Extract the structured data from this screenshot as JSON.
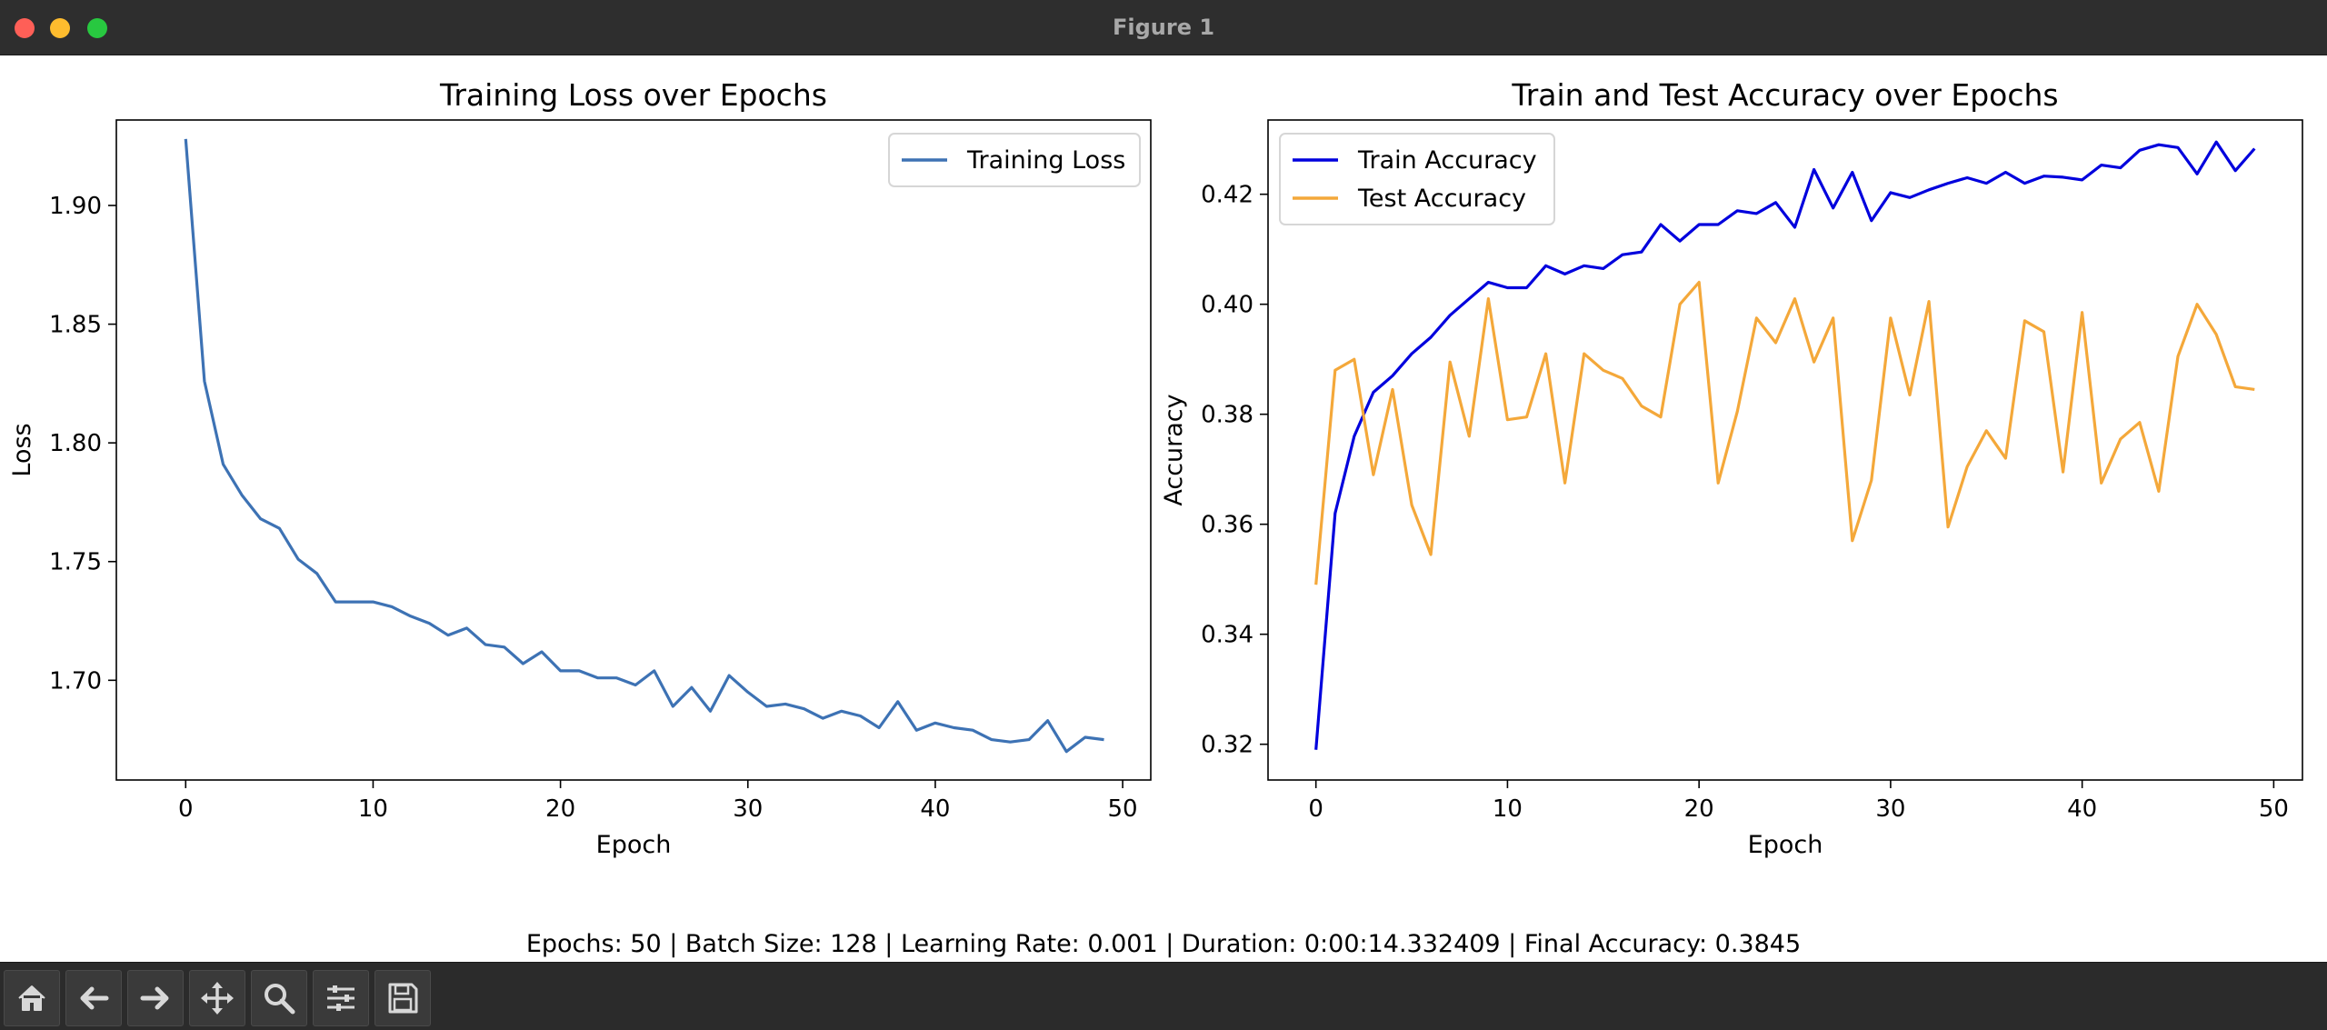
{
  "window": {
    "title": "Figure 1"
  },
  "footer": {
    "summary": "Epochs: 50 | Batch Size: 128 | Learning Rate: 0.001 | Duration: 0:00:14.332409 | Final Accuracy: 0.3845"
  },
  "toolbar": {
    "buttons": [
      {
        "name": "home-icon"
      },
      {
        "name": "back-arrow-icon"
      },
      {
        "name": "forward-arrow-icon"
      },
      {
        "name": "pan-icon"
      },
      {
        "name": "zoom-icon"
      },
      {
        "name": "configure-subplots-icon"
      },
      {
        "name": "save-icon"
      }
    ]
  },
  "chart_data": [
    {
      "type": "line",
      "title": "Training Loss over Epochs",
      "xlabel": "Epoch",
      "ylabel": "Loss",
      "xlim": [
        -3.7,
        51.5
      ],
      "ylim": [
        1.658,
        1.936
      ],
      "xticks": [
        0,
        10,
        20,
        30,
        40,
        50
      ],
      "xtick_labels": [
        "0",
        "10",
        "20",
        "30",
        "40",
        "50"
      ],
      "yticks": [
        1.7,
        1.75,
        1.8,
        1.85,
        1.9
      ],
      "ytick_labels": [
        "1.70",
        "1.75",
        "1.80",
        "1.85",
        "1.90"
      ],
      "legend_position": "top-right",
      "x": [
        0,
        1,
        2,
        3,
        4,
        5,
        6,
        7,
        8,
        9,
        10,
        11,
        12,
        13,
        14,
        15,
        16,
        17,
        18,
        19,
        20,
        21,
        22,
        23,
        24,
        25,
        26,
        27,
        28,
        29,
        30,
        31,
        32,
        33,
        34,
        35,
        36,
        37,
        38,
        39,
        40,
        41,
        42,
        43,
        44,
        45,
        46,
        47,
        48,
        49
      ],
      "series": [
        {
          "name": "Training Loss",
          "color": "#3d72b4",
          "values": [
            1.928,
            1.826,
            1.791,
            1.778,
            1.768,
            1.764,
            1.751,
            1.745,
            1.733,
            1.733,
            1.733,
            1.731,
            1.727,
            1.724,
            1.719,
            1.722,
            1.715,
            1.714,
            1.707,
            1.712,
            1.704,
            1.704,
            1.701,
            1.701,
            1.698,
            1.704,
            1.689,
            1.697,
            1.687,
            1.702,
            1.695,
            1.689,
            1.69,
            1.688,
            1.684,
            1.687,
            1.685,
            1.68,
            1.691,
            1.679,
            1.682,
            1.68,
            1.679,
            1.675,
            1.674,
            1.675,
            1.683,
            1.67,
            1.676,
            1.675
          ]
        }
      ]
    },
    {
      "type": "line",
      "title": "Train and Test Accuracy over Epochs",
      "xlabel": "Epoch",
      "ylabel": "Accuracy",
      "xlim": [
        -2.5,
        51.5
      ],
      "ylim": [
        0.3135,
        0.4335
      ],
      "xticks": [
        0,
        10,
        20,
        30,
        40,
        50
      ],
      "xtick_labels": [
        "0",
        "10",
        "20",
        "30",
        "40",
        "50"
      ],
      "yticks": [
        0.32,
        0.34,
        0.36,
        0.38,
        0.4,
        0.42
      ],
      "ytick_labels": [
        "0.32",
        "0.34",
        "0.36",
        "0.38",
        "0.40",
        "0.42"
      ],
      "legend_position": "top-left",
      "x": [
        0,
        1,
        2,
        3,
        4,
        5,
        6,
        7,
        8,
        9,
        10,
        11,
        12,
        13,
        14,
        15,
        16,
        17,
        18,
        19,
        20,
        21,
        22,
        23,
        24,
        25,
        26,
        27,
        28,
        29,
        30,
        31,
        32,
        33,
        34,
        35,
        36,
        37,
        38,
        39,
        40,
        41,
        42,
        43,
        44,
        45,
        46,
        47,
        48,
        49
      ],
      "series": [
        {
          "name": "Train Accuracy",
          "color": "#0000dd",
          "values": [
            0.319,
            0.362,
            0.376,
            0.384,
            0.387,
            0.391,
            0.394,
            0.398,
            0.401,
            0.404,
            0.403,
            0.403,
            0.407,
            0.4055,
            0.407,
            0.4065,
            0.409,
            0.4095,
            0.4145,
            0.4115,
            0.4145,
            0.4145,
            0.417,
            0.4165,
            0.4185,
            0.414,
            0.4245,
            0.4175,
            0.424,
            0.4152,
            0.4203,
            0.4194,
            0.4208,
            0.422,
            0.423,
            0.422,
            0.424,
            0.422,
            0.4233,
            0.4231,
            0.4226,
            0.4253,
            0.4248,
            0.428,
            0.429,
            0.4285,
            0.4237,
            0.4295,
            0.4243,
            0.4283
          ]
        },
        {
          "name": "Test Accuracy",
          "color": "#f4a83a",
          "values": [
            0.349,
            0.388,
            0.39,
            0.369,
            0.3845,
            0.3635,
            0.3545,
            0.3895,
            0.376,
            0.401,
            0.379,
            0.3795,
            0.391,
            0.3675,
            0.391,
            0.388,
            0.3865,
            0.3815,
            0.3795,
            0.4,
            0.404,
            0.3675,
            0.3805,
            0.3975,
            0.393,
            0.401,
            0.3895,
            0.3975,
            0.357,
            0.368,
            0.3975,
            0.3835,
            0.4005,
            0.3595,
            0.3705,
            0.377,
            0.372,
            0.397,
            0.395,
            0.3695,
            0.3985,
            0.3675,
            0.3755,
            0.3785,
            0.366,
            0.3905,
            0.4,
            0.3945,
            0.385,
            0.3845
          ]
        }
      ]
    }
  ]
}
